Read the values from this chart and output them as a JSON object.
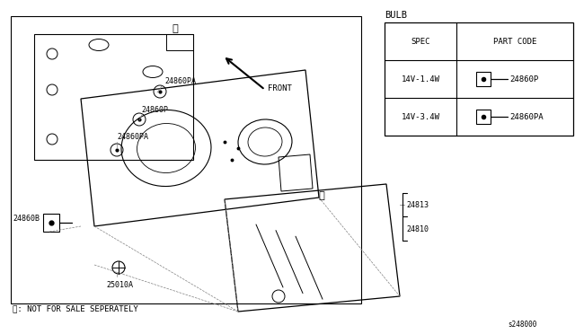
{
  "bg_color": "#ffffff",
  "line_color": "#000000",
  "text_color": "#000000",
  "fig_width": 6.4,
  "fig_height": 3.72,
  "dpi": 100,
  "footnote": "※: NOT FOR SALE SEPERATELY",
  "diagram_id": "s248000",
  "bulb_title": "BULB",
  "table_headers": [
    "SPEC",
    "PART CODE"
  ],
  "table_rows": [
    {
      "spec": "14V-1.4W",
      "part_code": "24860P"
    },
    {
      "spec": "14V-3.4W",
      "part_code": "24860PA"
    }
  ]
}
